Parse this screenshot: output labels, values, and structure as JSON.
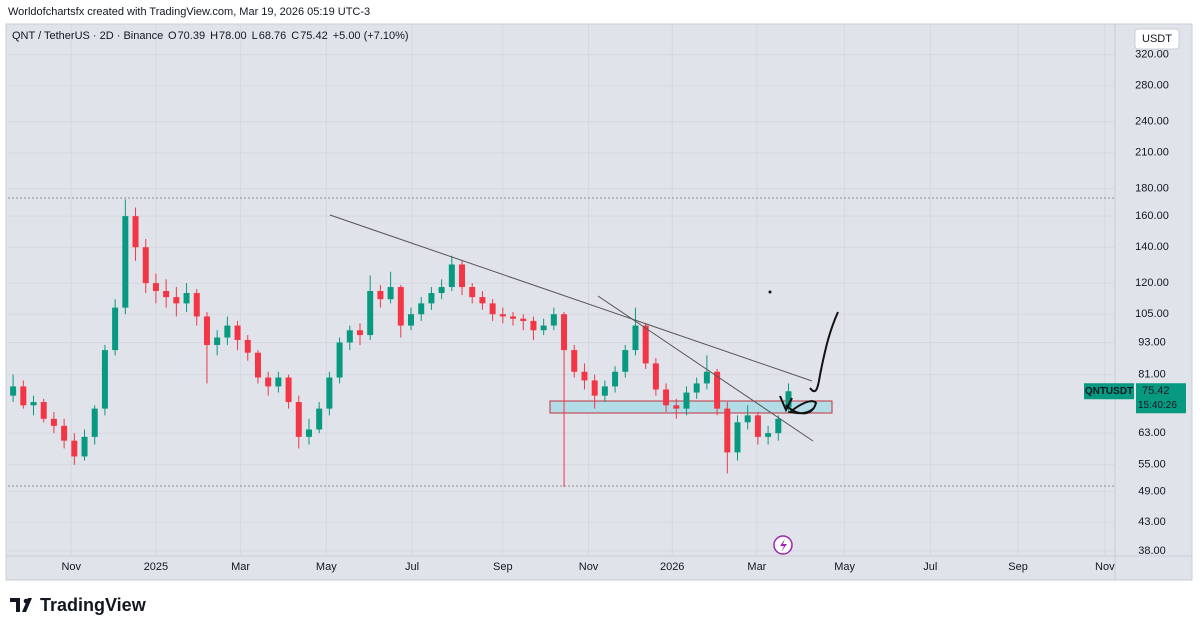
{
  "header": {
    "credit": "Worldofchartsfx created with TradingView.com, Mar 19, 2026 05:19 UTC-3",
    "logo": "TradingView"
  },
  "chart_data": {
    "type": "candlestick",
    "symbol": "QNT / TetherUS · 2D · Binance",
    "legend_items": [
      {
        "label": "O",
        "value": 70.39
      },
      {
        "label": "H",
        "value": 78.0
      },
      {
        "label": "L",
        "value": 68.76
      },
      {
        "label": "C",
        "value": 75.42
      }
    ],
    "change_text": "+5.00 (+7.10%)",
    "currency": "USDT",
    "price_tag": {
      "ticker": "QNTUSDT",
      "value": 75.42,
      "countdown": "15:40:26"
    },
    "up_color": "#089981",
    "down_color": "#f23645",
    "log_scale": true,
    "grid": true,
    "ylim": [
      35,
      338
    ],
    "yticks": [
      {
        "value": 320,
        "label": "320.00"
      },
      {
        "value": 280,
        "label": "280.00"
      },
      {
        "value": 240,
        "label": "240.00"
      },
      {
        "value": 210,
        "label": "210.00"
      },
      {
        "value": 180,
        "label": "180.00"
      },
      {
        "value": 160,
        "label": "160.00"
      },
      {
        "value": 140,
        "label": "140.00"
      },
      {
        "value": 120,
        "label": "120.00"
      },
      {
        "value": 105,
        "label": "105.00"
      },
      {
        "value": 93,
        "label": "93.00"
      },
      {
        "value": 81,
        "label": "81.00"
      },
      {
        "value": 63,
        "label": "63.00"
      },
      {
        "value": 55,
        "label": "55.00"
      },
      {
        "value": 49,
        "label": "49.00"
      },
      {
        "value": 43,
        "label": "43.00"
      },
      {
        "value": 38,
        "label": "38.00"
      }
    ],
    "xlim": [
      -0.5,
      108
    ],
    "xticks": [
      {
        "value": 5.7,
        "label": "Nov"
      },
      {
        "value": 14.0,
        "label": "2025"
      },
      {
        "value": 22.3,
        "label": "Mar"
      },
      {
        "value": 30.7,
        "label": "May"
      },
      {
        "value": 39.1,
        "label": "Jul"
      },
      {
        "value": 48.0,
        "label": "Sep"
      },
      {
        "value": 56.4,
        "label": "Nov"
      },
      {
        "value": 64.6,
        "label": "2026"
      },
      {
        "value": 72.9,
        "label": "Mar"
      },
      {
        "value": 81.5,
        "label": "May"
      },
      {
        "value": 89.9,
        "label": "Jul"
      },
      {
        "value": 98.5,
        "label": "Sep"
      },
      {
        "value": 107.0,
        "label": "Nov"
      }
    ],
    "candles": [
      [
        74,
        81,
        72,
        77
      ],
      [
        77,
        79,
        70,
        71
      ],
      [
        71,
        74,
        68,
        72
      ],
      [
        72,
        73,
        66,
        67
      ],
      [
        67,
        69,
        63,
        65
      ],
      [
        65,
        67,
        59,
        61
      ],
      [
        61,
        63,
        55,
        57
      ],
      [
        57,
        64,
        56,
        62
      ],
      [
        62,
        71,
        60,
        70
      ],
      [
        70,
        92,
        68,
        90
      ],
      [
        90,
        112,
        88,
        108
      ],
      [
        108,
        172,
        105,
        160
      ],
      [
        160,
        166,
        132,
        140
      ],
      [
        140,
        145,
        115,
        120
      ],
      [
        120,
        125,
        110,
        116
      ],
      [
        116,
        122,
        108,
        113
      ],
      [
        113,
        118,
        104,
        110
      ],
      [
        110,
        120,
        106,
        115
      ],
      [
        115,
        117,
        100,
        104
      ],
      [
        104,
        106,
        78,
        92
      ],
      [
        92,
        98,
        88,
        95
      ],
      [
        95,
        104,
        92,
        100
      ],
      [
        100,
        102,
        90,
        94
      ],
      [
        94,
        96,
        86,
        89
      ],
      [
        89,
        90,
        78,
        80
      ],
      [
        80,
        82,
        74,
        77
      ],
      [
        77,
        82,
        75,
        80
      ],
      [
        80,
        81,
        70,
        72
      ],
      [
        72,
        74,
        59,
        62
      ],
      [
        62,
        67,
        60,
        64
      ],
      [
        64,
        72,
        63,
        70
      ],
      [
        70,
        82,
        68,
        80
      ],
      [
        80,
        95,
        78,
        93
      ],
      [
        93,
        100,
        90,
        98
      ],
      [
        98,
        101,
        92,
        96
      ],
      [
        96,
        124,
        94,
        116
      ],
      [
        116,
        119,
        108,
        112
      ],
      [
        112,
        126,
        110,
        118
      ],
      [
        118,
        119,
        95,
        100
      ],
      [
        100,
        108,
        98,
        105
      ],
      [
        105,
        113,
        102,
        110
      ],
      [
        110,
        118,
        107,
        115
      ],
      [
        115,
        122,
        112,
        118
      ],
      [
        118,
        135,
        116,
        130
      ],
      [
        130,
        132,
        114,
        118
      ],
      [
        118,
        120,
        110,
        113
      ],
      [
        113,
        116,
        107,
        110
      ],
      [
        110,
        112,
        102,
        105
      ],
      [
        105,
        108,
        101,
        104
      ],
      [
        104,
        106,
        100,
        103
      ],
      [
        103,
        105,
        98,
        102
      ],
      [
        102,
        104,
        94,
        98
      ],
      [
        98,
        103,
        96,
        100
      ],
      [
        100,
        108,
        98,
        105
      ],
      [
        105,
        106,
        50,
        90
      ],
      [
        90,
        92,
        80,
        82
      ],
      [
        82,
        85,
        76,
        79
      ],
      [
        79,
        81,
        70,
        74
      ],
      [
        74,
        79,
        72,
        77
      ],
      [
        77,
        84,
        75,
        82
      ],
      [
        82,
        92,
        80,
        90
      ],
      [
        90,
        108,
        88,
        100
      ],
      [
        100,
        101,
        83,
        85
      ],
      [
        85,
        87,
        74,
        76
      ],
      [
        76,
        78,
        69,
        71
      ],
      [
        71,
        73,
        67,
        70
      ],
      [
        70,
        77,
        68,
        75
      ],
      [
        75,
        80,
        73,
        78
      ],
      [
        78,
        88,
        76,
        82
      ],
      [
        82,
        83,
        68,
        70
      ],
      [
        70,
        72,
        53,
        58
      ],
      [
        58,
        68,
        56,
        66
      ],
      [
        66,
        71,
        64,
        68
      ],
      [
        68,
        69,
        60,
        62
      ],
      [
        62,
        65,
        60,
        63
      ],
      [
        63,
        68,
        61,
        67
      ],
      [
        70.39,
        78,
        68.76,
        75.42
      ]
    ]
  }
}
